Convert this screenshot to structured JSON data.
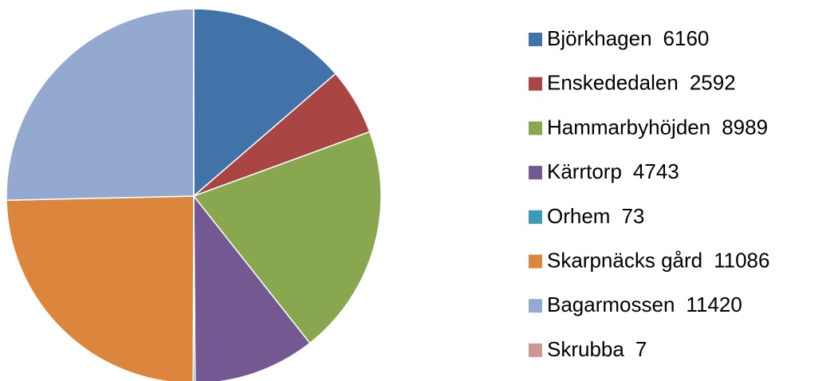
{
  "chart_data": {
    "type": "pie",
    "categories": [
      "Björkhagen",
      "Enskededalen",
      "Hammarbyhöjden",
      "Kärrtorp",
      "Orhem",
      "Skarpnäcks gård",
      "Bagarmossen",
      "Skrubba"
    ],
    "values": [
      6160,
      2592,
      8989,
      4743,
      73,
      11086,
      11420,
      7
    ],
    "colors": [
      "#4172a8",
      "#a94542",
      "#89a74e",
      "#735892",
      "#3c9ab2",
      "#dc853c",
      "#93a9cf",
      "#d09693"
    ],
    "legend": "right"
  }
}
